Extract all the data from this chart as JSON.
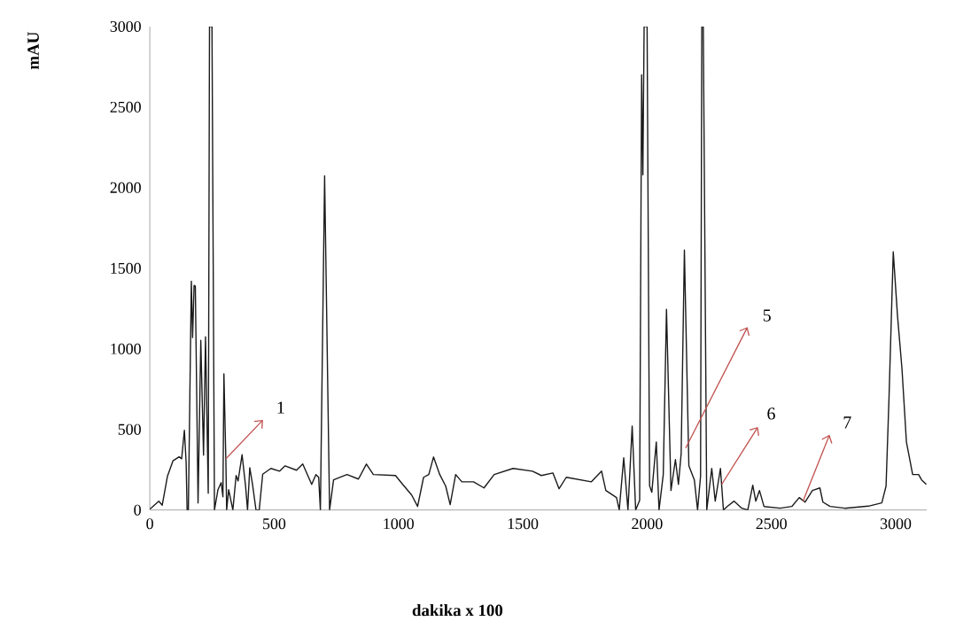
{
  "chart_data": {
    "type": "line",
    "xlabel": "dakika x 100",
    "ylabel": "mAU",
    "xlim": [
      0,
      3125
    ],
    "ylim": [
      0,
      3000
    ],
    "xticks": [
      0,
      500,
      1000,
      1500,
      2000,
      2500,
      3000
    ],
    "yticks": [
      0,
      500,
      1000,
      1500,
      2000,
      2500,
      3000
    ],
    "x": [
      0,
      36,
      50,
      71,
      93,
      118,
      128,
      139,
      146,
      150,
      155,
      167,
      172,
      178,
      183,
      194,
      205,
      216,
      224,
      235,
      240,
      250,
      260,
      274,
      287,
      294,
      298,
      306,
      309,
      317,
      334,
      347,
      355,
      371,
      385,
      393,
      402,
      413,
      427,
      440,
      454,
      487,
      522,
      544,
      590,
      615,
      651,
      668,
      679,
      686,
      703,
      723,
      739,
      793,
      839,
      871,
      899,
      988,
      1017,
      1053,
      1077,
      1101,
      1122,
      1141,
      1166,
      1190,
      1208,
      1230,
      1255,
      1302,
      1344,
      1385,
      1461,
      1539,
      1575,
      1621,
      1646,
      1675,
      1776,
      1817,
      1834,
      1877,
      1888,
      1906,
      1923,
      1940,
      1954,
      1970,
      1978,
      1983,
      1988,
      2000,
      2010,
      2019,
      2037,
      2048,
      2065,
      2078,
      2096,
      2114,
      2126,
      2137,
      2150,
      2168,
      2190,
      2203,
      2215,
      2220,
      2226,
      2240,
      2260,
      2274,
      2295,
      2307,
      2322,
      2350,
      2381,
      2405,
      2425,
      2437,
      2452,
      2470,
      2535,
      2582,
      2612,
      2635,
      2665,
      2695,
      2707,
      2736,
      2795,
      2890,
      2944,
      2961,
      2973,
      2990,
      3007,
      3025,
      3043,
      3068,
      3092,
      3104,
      3123
    ],
    "series": [
      {
        "color": "#1a1a1a",
        "values": [
          5,
          55,
          30,
          210,
          305,
          330,
          318,
          495,
          296,
          0,
          0,
          1420,
          1070,
          1393,
          1390,
          44,
          1053,
          340,
          1075,
          104,
          3000,
          3000,
          0,
          126,
          170,
          82,
          845,
          296,
          0,
          126,
          0,
          214,
          180,
          343,
          150,
          0,
          263,
          160,
          0,
          0,
          222,
          258,
          241,
          274,
          247,
          285,
          159,
          220,
          203,
          0,
          2074,
          0,
          187,
          220,
          192,
          285,
          220,
          214,
          159,
          93,
          22,
          203,
          220,
          329,
          220,
          148,
          33,
          220,
          175,
          175,
          137,
          220,
          258,
          241,
          214,
          230,
          132,
          203,
          175,
          241,
          121,
          77,
          0,
          324,
          0,
          521,
          0,
          60,
          2700,
          2080,
          3000,
          3000,
          150,
          110,
          422,
          0,
          220,
          1245,
          121,
          313,
          159,
          351,
          1613,
          274,
          187,
          0,
          210,
          3000,
          3000,
          0,
          258,
          55,
          258,
          0,
          22,
          55,
          11,
          0,
          154,
          55,
          121,
          22,
          11,
          22,
          77,
          49,
          121,
          137,
          49,
          22,
          11,
          24,
          44,
          148,
          697,
          1602,
          1207,
          878,
          422,
          220,
          220,
          187,
          159
        ]
      }
    ],
    "annotations": [
      {
        "text": "1",
        "x": 306,
        "y": 318
      },
      {
        "text": "5",
        "x": 2155,
        "y": 384
      },
      {
        "text": "6",
        "x": 2300,
        "y": 159
      },
      {
        "text": "7",
        "x": 2627,
        "y": 55
      }
    ]
  }
}
